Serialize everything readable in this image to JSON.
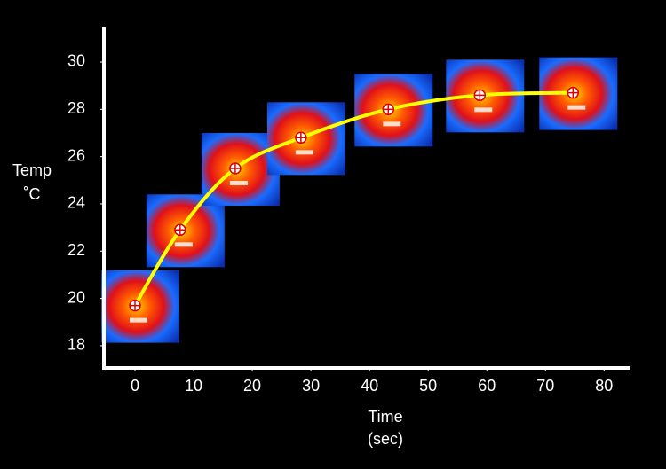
{
  "chart_data": {
    "type": "line",
    "xlabel": [
      "Time",
      "(sec)"
    ],
    "ylabel": [
      "Temp",
      "˚C"
    ],
    "x": [
      0,
      7.7,
      17.1,
      28.3,
      43.2,
      58.8,
      74.7
    ],
    "series": [
      {
        "color": "#ffff00",
        "values": [
          19.7,
          22.9,
          25.5,
          26.8,
          28.0,
          28.6,
          28.7
        ]
      }
    ],
    "xlim": [
      -5.3,
      84.5
    ],
    "ylim": [
      17.06,
      31.5
    ],
    "xticks": [
      0,
      10,
      20,
      30,
      40,
      50,
      60,
      70,
      80
    ],
    "yticks": [
      18,
      20,
      22,
      24,
      26,
      28,
      30
    ]
  }
}
